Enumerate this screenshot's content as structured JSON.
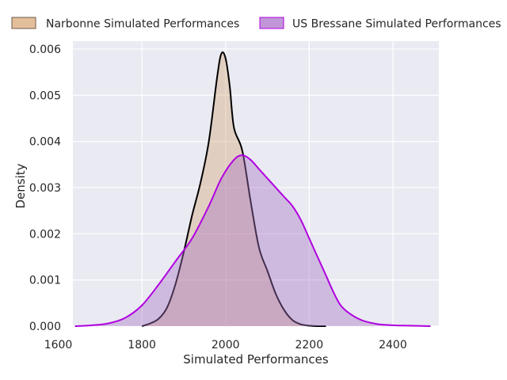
{
  "chart_data": {
    "type": "area",
    "title": "",
    "xlabel": "Simulated Performances",
    "ylabel": "Density",
    "xlim": [
      1635,
      2510
    ],
    "ylim": [
      0,
      0.00617
    ],
    "xticks": [
      1600,
      1800,
      2000,
      2200,
      2400
    ],
    "xtick_labels": [
      "1600",
      "1800",
      "2000",
      "2200",
      "2400"
    ],
    "yticks": [
      0,
      0.001,
      0.002,
      0.003,
      0.004,
      0.005,
      0.006
    ],
    "ytick_labels": [
      "0.000",
      "0.001",
      "0.002",
      "0.003",
      "0.004",
      "0.005",
      "0.006"
    ],
    "grid": true,
    "legend_position": "top",
    "background": "#eaeaf2",
    "series": [
      {
        "name": "Narbonne Simulated Performances",
        "fill": "#d2a679",
        "edge": "#000000",
        "x": [
          1800,
          1820,
          1840,
          1860,
          1880,
          1900,
          1920,
          1940,
          1960,
          1980,
          1990,
          2000,
          2010,
          2020,
          2040,
          2060,
          2080,
          2100,
          2120,
          2140,
          2160,
          2180,
          2200,
          2220,
          2240
        ],
        "y": [
          0.0,
          6e-05,
          0.00016,
          0.0004,
          0.0009,
          0.0016,
          0.0024,
          0.0031,
          0.004,
          0.0054,
          0.0059,
          0.0058,
          0.0052,
          0.0043,
          0.0038,
          0.0027,
          0.0017,
          0.0012,
          0.0007,
          0.00035,
          0.00013,
          4e-05,
          1e-05,
          0.0,
          0.0
        ]
      },
      {
        "name": "US Bressane Simulated Performances",
        "fill": "#a874c2",
        "edge": "#b000e0",
        "x": [
          1640,
          1680,
          1720,
          1760,
          1800,
          1840,
          1880,
          1920,
          1960,
          1990,
          2020,
          2040,
          2060,
          2080,
          2100,
          2120,
          2140,
          2160,
          2180,
          2200,
          2220,
          2240,
          2260,
          2280,
          2320,
          2360,
          2400,
          2440,
          2490
        ],
        "y": [
          0.0,
          2e-05,
          6e-05,
          0.00018,
          0.00045,
          0.0009,
          0.0014,
          0.0019,
          0.0026,
          0.0032,
          0.0036,
          0.0037,
          0.0036,
          0.0034,
          0.0032,
          0.003,
          0.0028,
          0.0026,
          0.0023,
          0.0019,
          0.0015,
          0.0011,
          0.0007,
          0.0004,
          0.00015,
          5e-05,
          2e-05,
          1e-05,
          0.0
        ]
      }
    ]
  }
}
